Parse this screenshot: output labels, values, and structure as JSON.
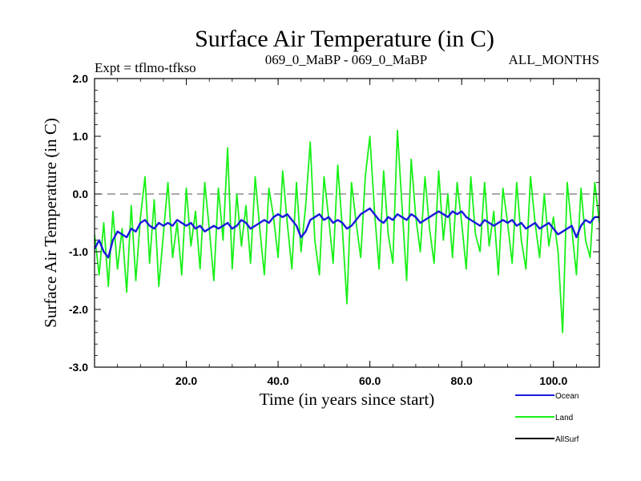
{
  "chart_data": {
    "type": "line",
    "title": "Surface Air Temperature (in C)",
    "subtitle_left": "Expt = tflmo-tfkso",
    "subtitle_center": "069_0_MaBP - 069_0_MaBP",
    "subtitle_right": "ALL_MONTHS",
    "xlabel": "Time (in years since start)",
    "ylabel": "Surface Air Temperature (in C)",
    "xlim": [
      0,
      110
    ],
    "ylim": [
      -3.0,
      2.0
    ],
    "x_ticks": [
      20,
      40,
      60,
      80,
      100
    ],
    "x_tick_labels": [
      "20.0",
      "40.0",
      "60.0",
      "80.0",
      "100.0"
    ],
    "y_ticks": [
      -3,
      -2,
      -1,
      0,
      1,
      2
    ],
    "y_tick_labels": [
      "-3.0",
      "-2.0",
      "-1.0",
      "0.0",
      "1.0",
      "2.0"
    ],
    "reference_line": {
      "y": 0.0,
      "style": "dashed"
    },
    "colors": {
      "ocean": "#1a1adc",
      "land": "#19f019",
      "allsurf": "#000000"
    },
    "series": [
      {
        "name": "Land",
        "color": "#19f019",
        "x": [
          0,
          1,
          2,
          3,
          4,
          5,
          6,
          7,
          8,
          9,
          10,
          11,
          12,
          13,
          14,
          15,
          16,
          17,
          18,
          19,
          20,
          21,
          22,
          23,
          24,
          25,
          26,
          27,
          28,
          29,
          30,
          31,
          32,
          33,
          34,
          35,
          36,
          37,
          38,
          39,
          40,
          41,
          42,
          43,
          44,
          45,
          46,
          47,
          48,
          49,
          50,
          51,
          52,
          53,
          54,
          55,
          56,
          57,
          58,
          59,
          60,
          61,
          62,
          63,
          64,
          65,
          66,
          67,
          68,
          69,
          70,
          71,
          72,
          73,
          74,
          75,
          76,
          77,
          78,
          79,
          80,
          81,
          82,
          83,
          84,
          85,
          86,
          87,
          88,
          89,
          90,
          91,
          92,
          93,
          94,
          95,
          96,
          97,
          98,
          99,
          100,
          101,
          102,
          103,
          104,
          105,
          106,
          107,
          108,
          109,
          110
        ],
        "values": [
          -0.7,
          -1.4,
          -0.5,
          -1.6,
          -0.3,
          -1.3,
          -0.6,
          -1.7,
          -0.2,
          -1.5,
          -0.4,
          0.3,
          -1.2,
          -0.1,
          -1.6,
          -0.7,
          0.2,
          -1.1,
          -0.5,
          -1.4,
          0.1,
          -0.9,
          -0.3,
          -1.3,
          0.2,
          -0.6,
          -1.5,
          0.1,
          -0.8,
          0.8,
          -1.3,
          0.0,
          -0.9,
          -0.2,
          -1.2,
          0.3,
          -0.6,
          -1.4,
          0.1,
          -0.4,
          -1.1,
          0.4,
          -0.5,
          -1.3,
          0.2,
          -1.0,
          -0.2,
          0.9,
          -0.8,
          -1.4,
          0.3,
          -0.4,
          -1.2,
          0.5,
          -0.6,
          -1.9,
          0.2,
          -0.5,
          -1.1,
          0.3,
          1.0,
          -0.3,
          -1.3,
          0.4,
          -0.7,
          -1.2,
          1.1,
          -0.2,
          -1.5,
          0.6,
          -0.4,
          -1.0,
          0.3,
          -0.6,
          -1.2,
          0.4,
          -0.8,
          0.0,
          -1.1,
          0.2,
          -0.5,
          -1.3,
          0.3,
          -0.7,
          -1.0,
          0.2,
          -0.9,
          -0.3,
          -1.4,
          0.1,
          -0.5,
          -1.2,
          0.2,
          -0.8,
          -1.3,
          0.3,
          -0.5,
          -1.1,
          0.0,
          -0.9,
          -0.4,
          -1.0,
          -2.4,
          0.2,
          -0.6,
          -1.4,
          0.1,
          -0.8,
          -1.1,
          0.2,
          -0.5
        ]
      },
      {
        "name": "Ocean",
        "color": "#1a1adc",
        "x": [
          0,
          1,
          2,
          3,
          4,
          5,
          6,
          7,
          8,
          9,
          10,
          11,
          12,
          13,
          14,
          15,
          16,
          17,
          18,
          19,
          20,
          21,
          22,
          23,
          24,
          25,
          26,
          27,
          28,
          29,
          30,
          31,
          32,
          33,
          34,
          35,
          36,
          37,
          38,
          39,
          40,
          41,
          42,
          43,
          44,
          45,
          46,
          47,
          48,
          49,
          50,
          51,
          52,
          53,
          54,
          55,
          56,
          57,
          58,
          59,
          60,
          61,
          62,
          63,
          64,
          65,
          66,
          67,
          68,
          69,
          70,
          71,
          72,
          73,
          74,
          75,
          76,
          77,
          78,
          79,
          80,
          81,
          82,
          83,
          84,
          85,
          86,
          87,
          88,
          89,
          90,
          91,
          92,
          93,
          94,
          95,
          96,
          97,
          98,
          99,
          100,
          101,
          102,
          103,
          104,
          105,
          106,
          107,
          108,
          109,
          110
        ],
        "values": [
          -0.95,
          -0.8,
          -1.0,
          -1.1,
          -0.8,
          -0.65,
          -0.7,
          -0.75,
          -0.6,
          -0.65,
          -0.5,
          -0.45,
          -0.55,
          -0.6,
          -0.5,
          -0.55,
          -0.5,
          -0.55,
          -0.45,
          -0.5,
          -0.55,
          -0.5,
          -0.6,
          -0.55,
          -0.65,
          -0.6,
          -0.55,
          -0.6,
          -0.55,
          -0.5,
          -0.6,
          -0.55,
          -0.45,
          -0.5,
          -0.6,
          -0.55,
          -0.5,
          -0.45,
          -0.5,
          -0.4,
          -0.35,
          -0.4,
          -0.35,
          -0.45,
          -0.55,
          -0.75,
          -0.65,
          -0.45,
          -0.4,
          -0.35,
          -0.45,
          -0.4,
          -0.5,
          -0.45,
          -0.5,
          -0.6,
          -0.55,
          -0.45,
          -0.35,
          -0.3,
          -0.25,
          -0.35,
          -0.45,
          -0.5,
          -0.4,
          -0.45,
          -0.35,
          -0.4,
          -0.45,
          -0.35,
          -0.4,
          -0.5,
          -0.45,
          -0.4,
          -0.35,
          -0.3,
          -0.35,
          -0.4,
          -0.3,
          -0.35,
          -0.3,
          -0.4,
          -0.45,
          -0.5,
          -0.55,
          -0.45,
          -0.5,
          -0.55,
          -0.5,
          -0.45,
          -0.5,
          -0.45,
          -0.55,
          -0.5,
          -0.6,
          -0.55,
          -0.5,
          -0.6,
          -0.55,
          -0.5,
          -0.6,
          -0.7,
          -0.65,
          -0.6,
          -0.55,
          -0.75,
          -0.55,
          -0.45,
          -0.5,
          -0.4,
          -0.4
        ]
      },
      {
        "name": "AllSurf",
        "color": "#000000",
        "x": [],
        "values": []
      }
    ],
    "legend": {
      "position": "bottom-right",
      "entries": [
        {
          "label": "Ocean",
          "color": "#1a1adc"
        },
        {
          "label": "Land",
          "color": "#19f019"
        },
        {
          "label": "AllSurf",
          "color": "#000000"
        }
      ]
    }
  }
}
